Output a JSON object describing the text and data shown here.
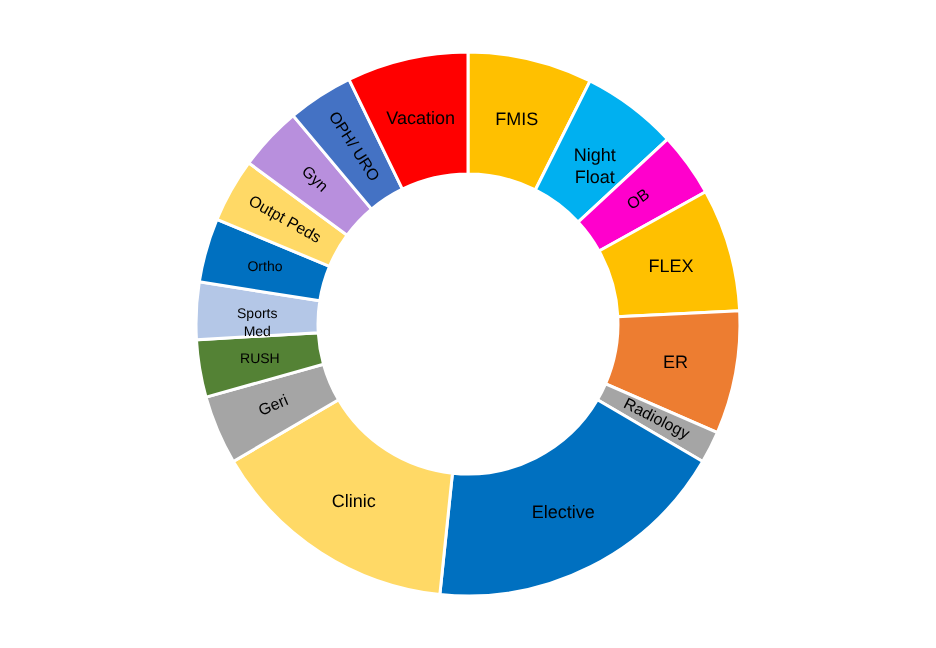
{
  "chart_data": {
    "type": "donut",
    "categories": [
      "FMIS",
      "Night Float",
      "OB",
      "FLEX",
      "ER",
      "Radiology",
      "Elective",
      "Clinic",
      "Geri",
      "RUSH",
      "Sports Med",
      "Ortho",
      "Outpt Peds",
      "Gyn",
      "OPH/ URO",
      "Vacation"
    ],
    "values": [
      7.4,
      5.7,
      3.8,
      7.3,
      7.3,
      1.9,
      18.2,
      14.9,
      4.1,
      3.4,
      3.4,
      3.8,
      3.8,
      3.8,
      3.9,
      7.2
    ],
    "colors": [
      "#ffc000",
      "#00b0f0",
      "#ff00cc",
      "#ffc000",
      "#ed7d31",
      "#a5a5a5",
      "#0070c0",
      "#ffd966",
      "#a5a5a5",
      "#548235",
      "#b4c7e7",
      "#0070c0",
      "#ffd966",
      "#b88fdd",
      "#4472c4",
      "#ff0000"
    ]
  }
}
